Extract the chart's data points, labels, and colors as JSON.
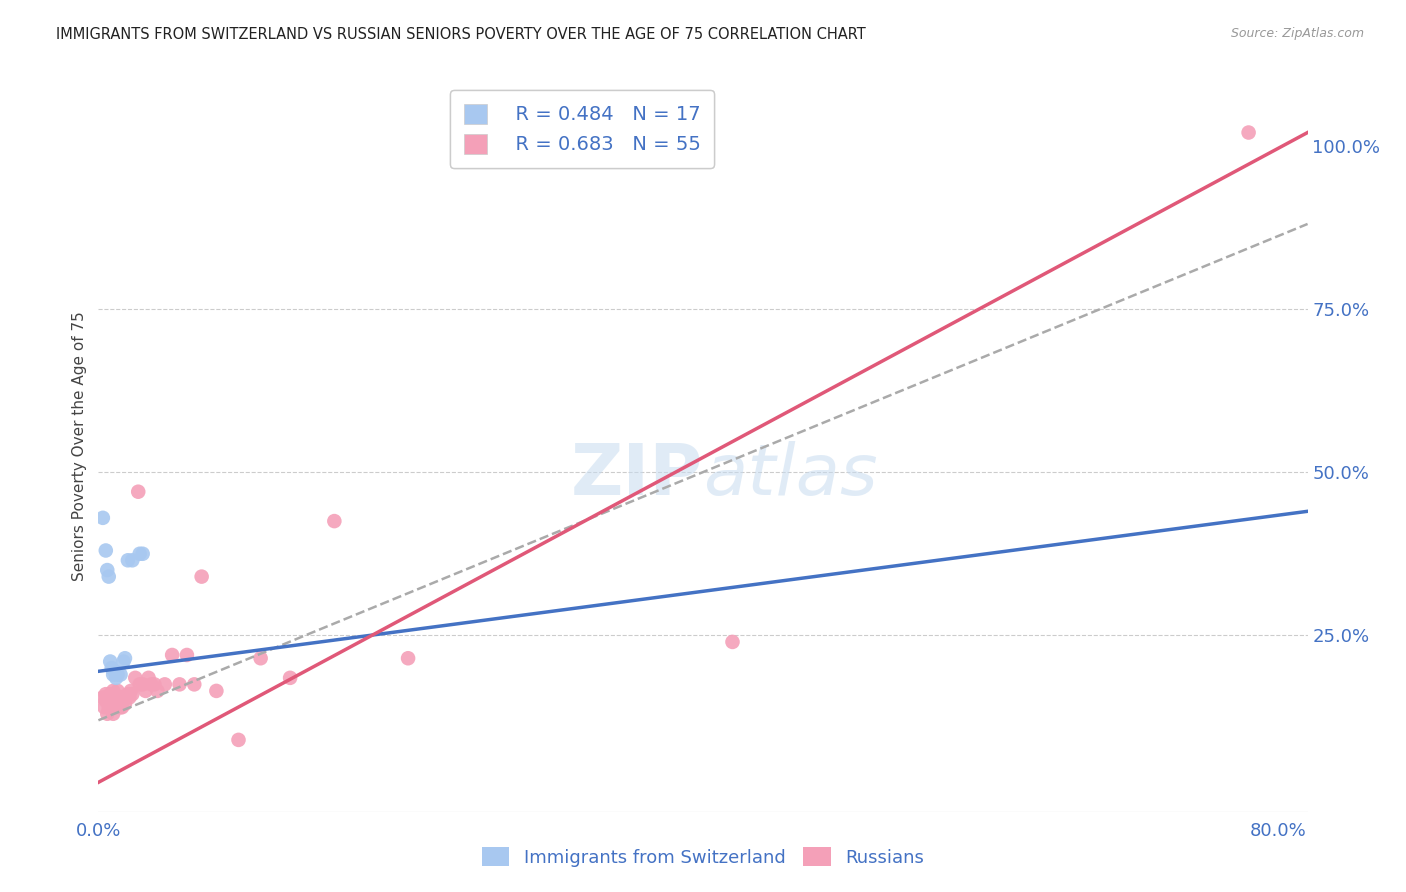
{
  "title": "IMMIGRANTS FROM SWITZERLAND VS RUSSIAN SENIORS POVERTY OVER THE AGE OF 75 CORRELATION CHART",
  "source": "Source: ZipAtlas.com",
  "ylabel": "Seniors Poverty Over the Age of 75",
  "xlim": [
    0.0,
    0.82
  ],
  "ylim": [
    -0.02,
    1.1
  ],
  "legend_r1": "R = 0.484",
  "legend_n1": "N = 17",
  "legend_r2": "R = 0.683",
  "legend_n2": "N = 55",
  "legend_label1": "Immigrants from Switzerland",
  "legend_label2": "Russians",
  "color_blue": "#A8C8F0",
  "color_pink": "#F4A0B8",
  "color_blue_line": "#4472C4",
  "color_pink_line": "#E05878",
  "color_dashed": "#AAAAAA",
  "axis_label_color": "#4472C4",
  "swiss_x": [
    0.003,
    0.005,
    0.006,
    0.007,
    0.008,
    0.009,
    0.01,
    0.011,
    0.012,
    0.013,
    0.015,
    0.017,
    0.018,
    0.02,
    0.023,
    0.028,
    0.03
  ],
  "swiss_y": [
    0.43,
    0.38,
    0.35,
    0.34,
    0.21,
    0.2,
    0.19,
    0.195,
    0.185,
    0.19,
    0.19,
    0.21,
    0.215,
    0.365,
    0.365,
    0.375,
    0.375
  ],
  "russian_x": [
    0.003,
    0.004,
    0.005,
    0.005,
    0.006,
    0.006,
    0.007,
    0.007,
    0.008,
    0.008,
    0.009,
    0.009,
    0.01,
    0.01,
    0.011,
    0.011,
    0.012,
    0.012,
    0.013,
    0.013,
    0.014,
    0.014,
    0.015,
    0.016,
    0.016,
    0.017,
    0.018,
    0.019,
    0.02,
    0.021,
    0.022,
    0.023,
    0.025,
    0.027,
    0.028,
    0.03,
    0.032,
    0.034,
    0.036,
    0.038,
    0.04,
    0.045,
    0.05,
    0.055,
    0.06,
    0.065,
    0.07,
    0.08,
    0.095,
    0.11,
    0.13,
    0.16,
    0.21,
    0.43,
    0.78
  ],
  "russian_y": [
    0.155,
    0.14,
    0.15,
    0.16,
    0.13,
    0.155,
    0.14,
    0.155,
    0.145,
    0.16,
    0.14,
    0.155,
    0.13,
    0.165,
    0.14,
    0.16,
    0.155,
    0.145,
    0.155,
    0.165,
    0.155,
    0.145,
    0.14,
    0.155,
    0.14,
    0.155,
    0.145,
    0.155,
    0.16,
    0.155,
    0.165,
    0.16,
    0.185,
    0.47,
    0.175,
    0.175,
    0.165,
    0.185,
    0.175,
    0.175,
    0.165,
    0.175,
    0.22,
    0.175,
    0.22,
    0.175,
    0.34,
    0.165,
    0.09,
    0.215,
    0.185,
    0.425,
    0.215,
    0.24,
    1.02
  ],
  "blue_line_x0": 0.0,
  "blue_line_y0": 0.195,
  "blue_line_x1": 0.82,
  "blue_line_y1": 0.44,
  "pink_line_x0": 0.0,
  "pink_line_y0": 0.025,
  "pink_line_x1": 0.82,
  "pink_line_y1": 1.02,
  "dash_line_x0": 0.0,
  "dash_line_y0": 0.12,
  "dash_line_x1": 0.82,
  "dash_line_y1": 0.88
}
